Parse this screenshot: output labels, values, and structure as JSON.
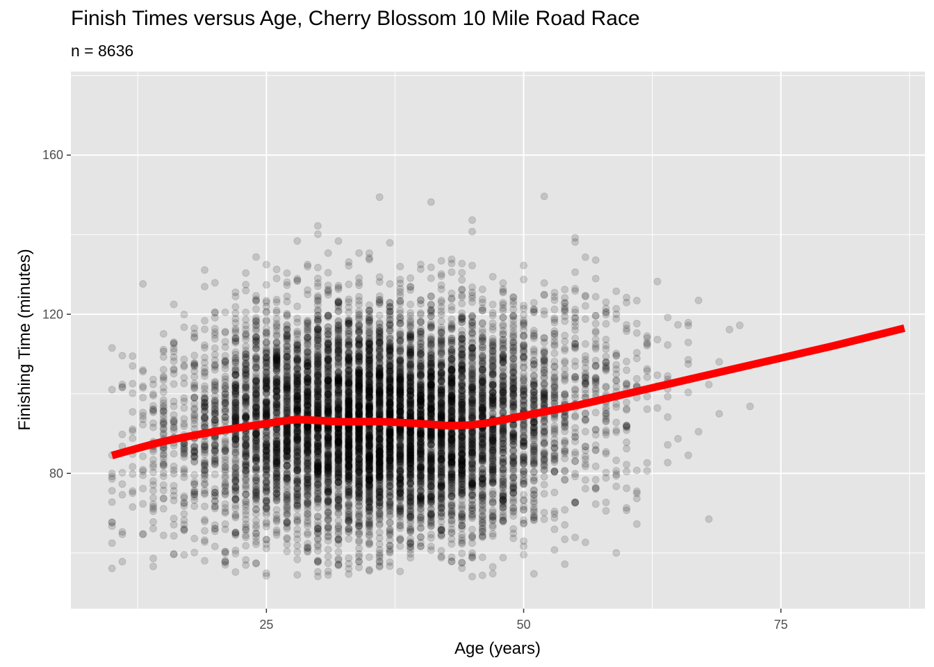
{
  "title": "Finish Times versus Age, Cherry Blossom 10 Mile Road Race",
  "subtitle": "n = 8636",
  "chart_data": {
    "type": "scatter",
    "title": "Finish Times versus Age, Cherry Blossom 10 Mile Road Race",
    "subtitle": "n = 8636",
    "xlabel": "Age (years)",
    "ylabel": "Finishing Time (minutes)",
    "xlim": [
      6,
      89
    ],
    "ylim": [
      46,
      181
    ],
    "x_ticks": [
      25,
      50,
      75
    ],
    "y_ticks": [
      80,
      120,
      160
    ],
    "grid": true,
    "legend": "none",
    "n_points": 8636,
    "point_color": "#000000",
    "point_opacity": 0.15,
    "panel_background": "#e5e5e5",
    "trend_color": "#ff0000",
    "series": [
      {
        "type": "smooth",
        "x": [
          10,
          15,
          20,
          25,
          28,
          32,
          36,
          40,
          43,
          46,
          50,
          55,
          60,
          65,
          70,
          75,
          80,
          87
        ],
        "y": [
          84.5,
          88,
          90.5,
          92.5,
          93.5,
          93,
          93,
          92.5,
          92,
          92.5,
          94.5,
          97,
          100,
          103,
          106,
          109,
          112,
          116.5
        ]
      }
    ]
  }
}
